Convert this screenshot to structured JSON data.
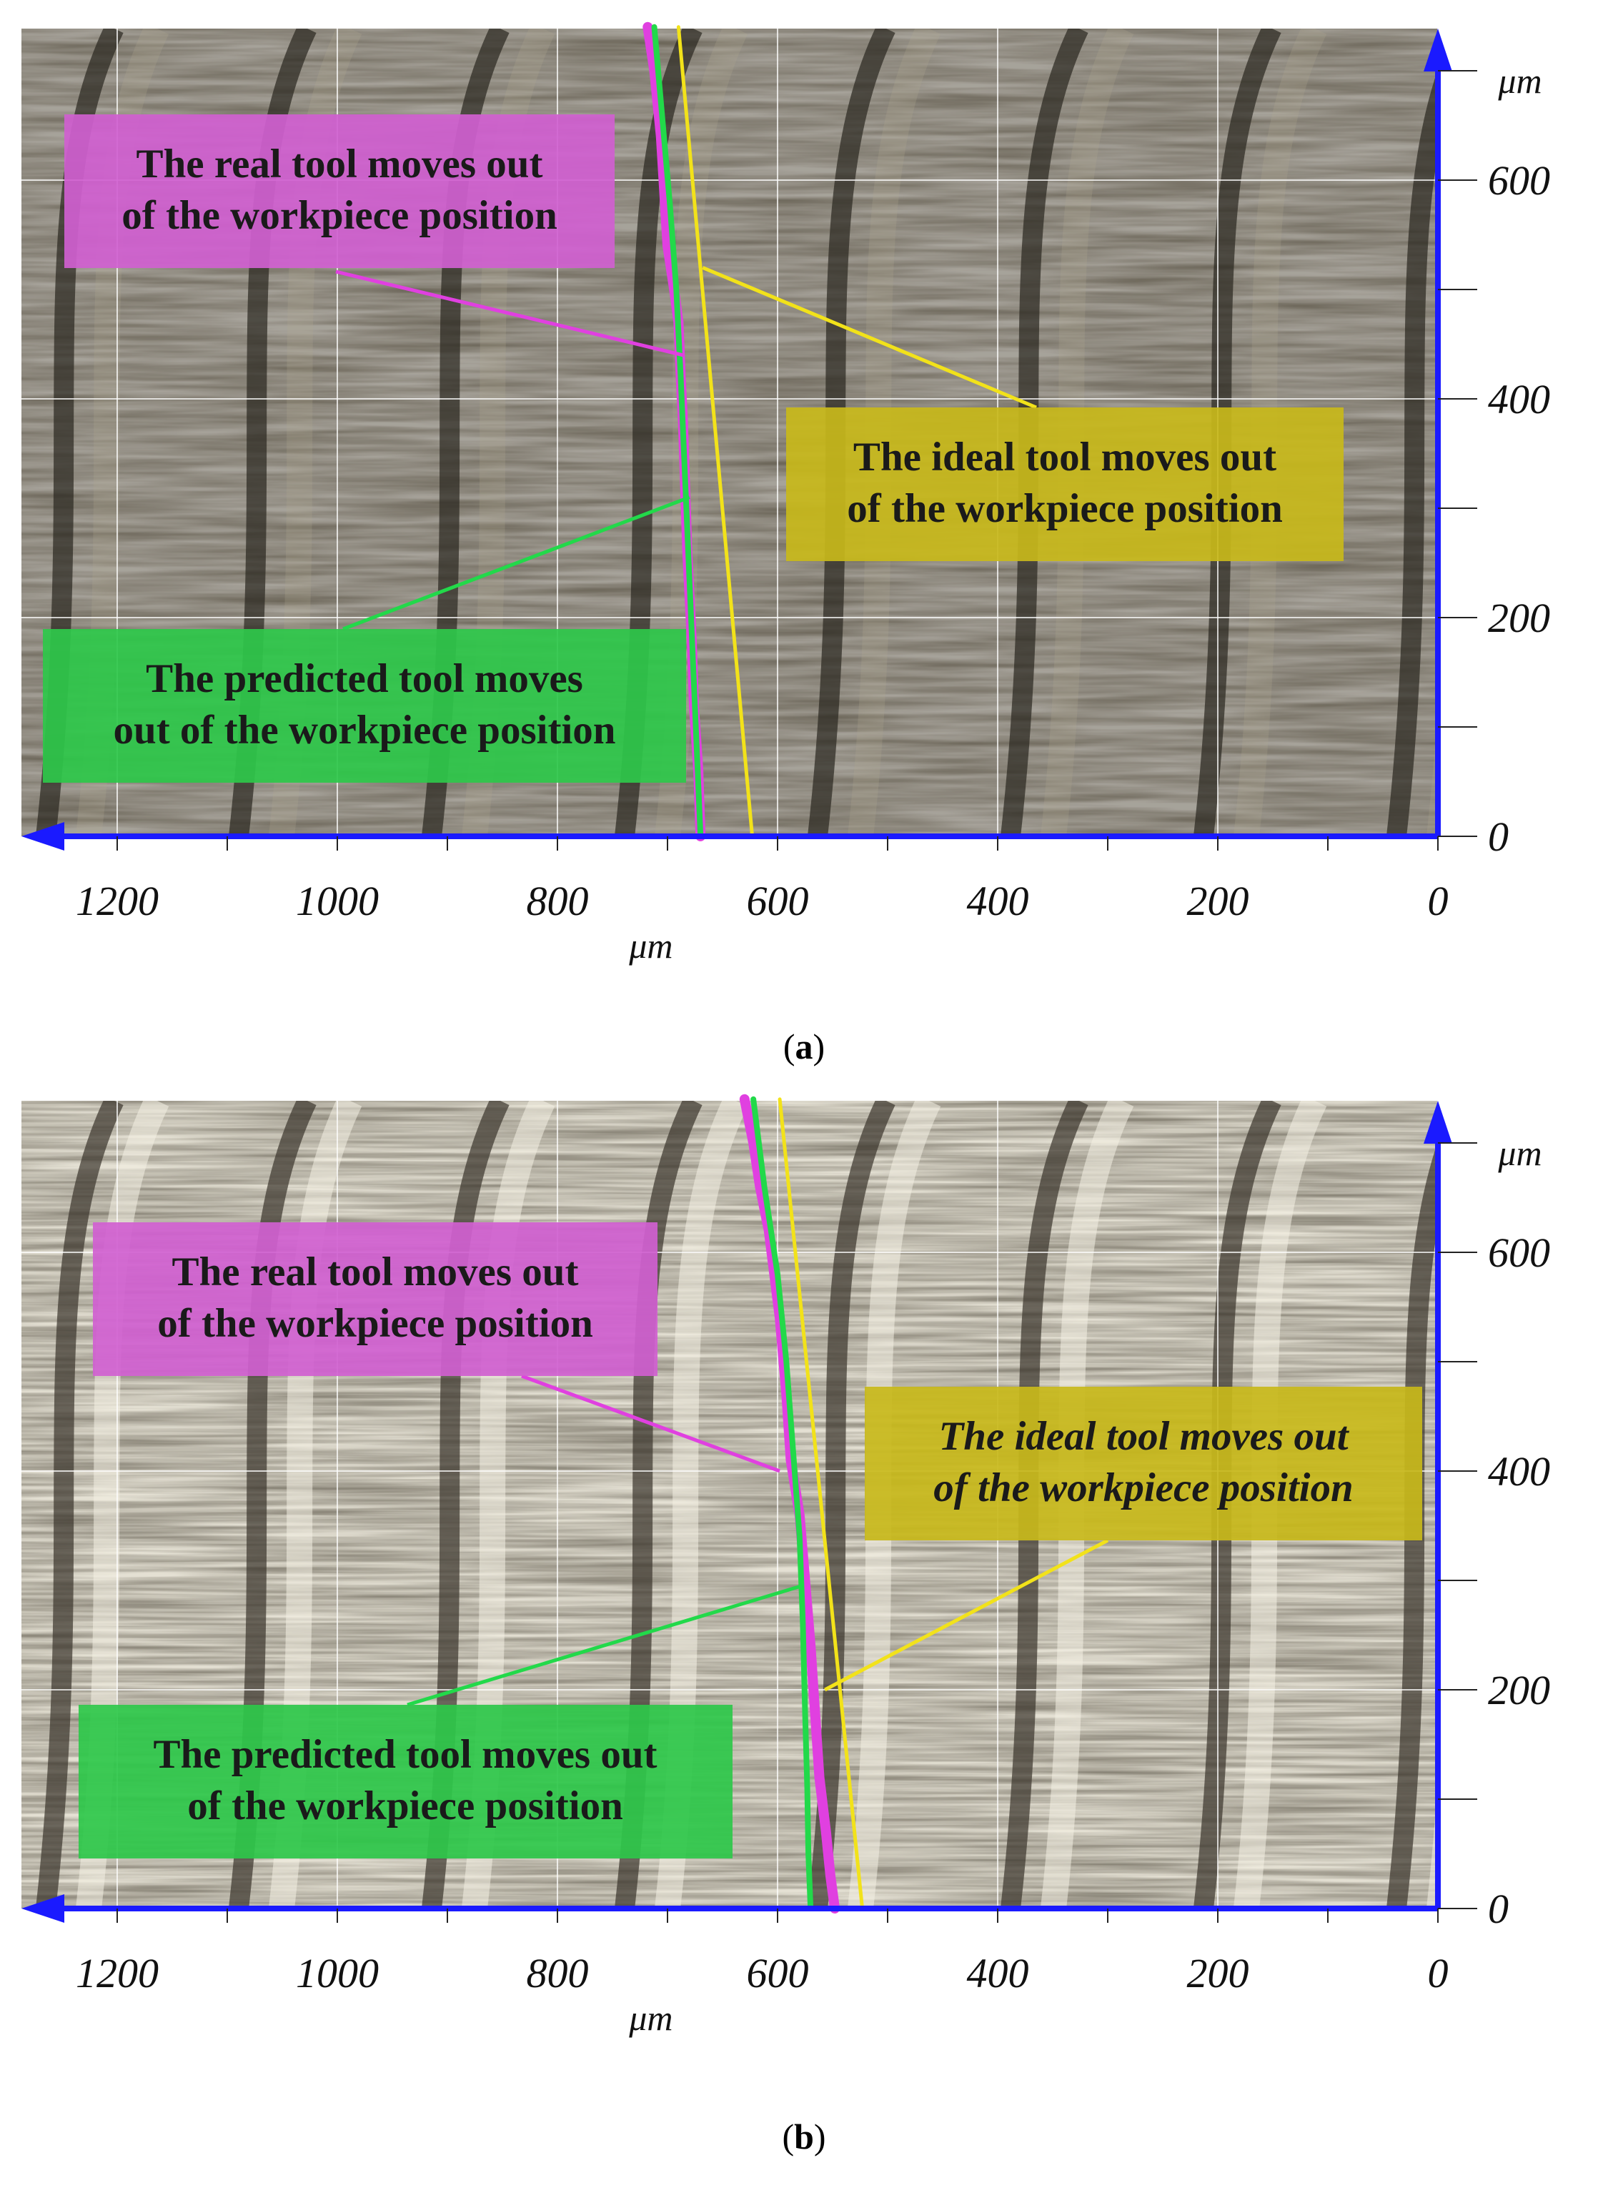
{
  "colors": {
    "axis": "#1a1aff",
    "real": "#e040e0",
    "predicted": "#22d94a",
    "ideal": "#f2e21a",
    "real_label_bg": "#d060d0",
    "predicted_label_bg": "#2ec84a",
    "ideal_label_bg": "#c8b81a"
  },
  "panels": [
    {
      "id": "a",
      "caption_open": "(",
      "caption_letter": "a",
      "caption_close": ")",
      "x_unit": "μm",
      "y_unit": "μm",
      "x_ticks": [
        "1200",
        "1000",
        "800",
        "600",
        "400",
        "200",
        "0"
      ],
      "y_ticks": [
        "600",
        "400",
        "200",
        "0"
      ],
      "surface_style": "dark",
      "labels": {
        "real": [
          "The real tool moves out",
          "of the workpiece position"
        ],
        "ideal": [
          "The ideal tool moves out",
          "of the workpiece position"
        ],
        "predicted": [
          "The predicted tool moves",
          "out of the workpiece position"
        ]
      },
      "ideal_italic": false
    },
    {
      "id": "b",
      "caption_open": "(",
      "caption_letter": "b",
      "caption_close": ")",
      "x_unit": "μm",
      "y_unit": "μm",
      "x_ticks": [
        "1200",
        "1000",
        "800",
        "600",
        "400",
        "200",
        "0"
      ],
      "y_ticks": [
        "600",
        "400",
        "200",
        "0"
      ],
      "surface_style": "bright",
      "labels": {
        "real": [
          "The real tool moves out",
          "of the workpiece position"
        ],
        "ideal": [
          "The ideal tool moves out",
          "of the workpiece position"
        ],
        "predicted": [
          "The predicted tool moves out",
          "of the workpiece position"
        ]
      },
      "ideal_italic": true
    }
  ],
  "chart_data": [
    {
      "type": "line",
      "panel": "a",
      "xlabel": "μm",
      "ylabel": "μm",
      "xlim": [
        1300,
        0
      ],
      "ylim": [
        0,
        740
      ],
      "series": [
        {
          "name": "The real tool moves out of the workpiece position",
          "x": [
            718,
            712,
            706,
            703,
            700,
            694,
            690,
            688,
            686,
            684,
            682,
            680,
            678,
            676,
            672,
            670
          ],
          "y": [
            740,
            700,
            640,
            590,
            540,
            500,
            470,
            420,
            380,
            320,
            260,
            220,
            180,
            120,
            60,
            0
          ]
        },
        {
          "name": "The predicted tool moves out of the workpiece position",
          "x": [
            712,
            705,
            698,
            692,
            688,
            685,
            682,
            679,
            676,
            673,
            670
          ],
          "y": [
            740,
            660,
            580,
            500,
            420,
            350,
            280,
            210,
            140,
            70,
            0
          ]
        },
        {
          "name": "The ideal tool moves out of the workpiece position",
          "x": [
            690,
            623
          ],
          "y": [
            740,
            0
          ]
        }
      ]
    },
    {
      "type": "line",
      "panel": "b",
      "xlabel": "μm",
      "ylabel": "μm",
      "xlim": [
        1300,
        0
      ],
      "ylim": [
        0,
        740
      ],
      "series": [
        {
          "name": "The real tool moves out of the workpiece position",
          "x": [
            630,
            622,
            616,
            608,
            598,
            592,
            588,
            580,
            575,
            570,
            566,
            562,
            556,
            552,
            548
          ],
          "y": [
            740,
            700,
            660,
            620,
            540,
            470,
            410,
            360,
            300,
            240,
            180,
            120,
            70,
            30,
            0
          ]
        },
        {
          "name": "The predicted tool moves out of the workpiece position",
          "x": [
            622,
            612,
            600,
            592,
            586,
            580,
            577,
            575,
            573,
            572,
            570
          ],
          "y": [
            740,
            660,
            580,
            500,
            420,
            340,
            260,
            180,
            110,
            50,
            0
          ]
        },
        {
          "name": "The ideal tool moves out of the workpiece position",
          "x": [
            598,
            523
          ],
          "y": [
            740,
            0
          ]
        }
      ]
    }
  ]
}
